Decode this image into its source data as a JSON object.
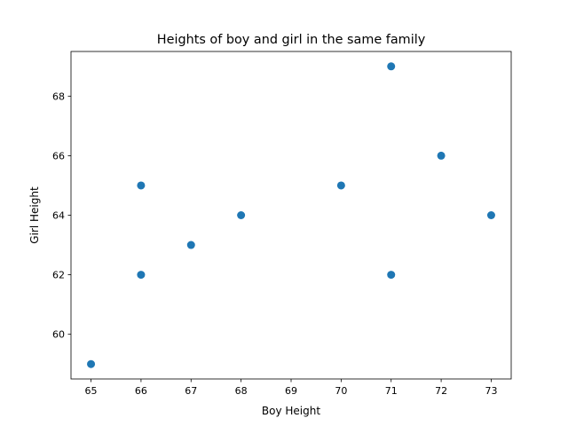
{
  "chart_data": {
    "type": "scatter",
    "title": "Heights of boy and girl in the same family",
    "xlabel": "Boy Height",
    "ylabel": "Girl Height",
    "xlim": [
      64.6,
      73.4
    ],
    "ylim": [
      58.5,
      69.5
    ],
    "xticks": [
      65,
      66,
      67,
      68,
      69,
      70,
      71,
      72,
      73
    ],
    "yticks": [
      60,
      62,
      64,
      66,
      68
    ],
    "grid": false,
    "legend": "none",
    "marker_color": "#1f77b4",
    "points": [
      {
        "x": 65,
        "y": 59
      },
      {
        "x": 66,
        "y": 62
      },
      {
        "x": 66,
        "y": 65
      },
      {
        "x": 67,
        "y": 63
      },
      {
        "x": 68,
        "y": 64
      },
      {
        "x": 70,
        "y": 65
      },
      {
        "x": 71,
        "y": 62
      },
      {
        "x": 71,
        "y": 69
      },
      {
        "x": 72,
        "y": 66
      },
      {
        "x": 73,
        "y": 64
      }
    ]
  }
}
